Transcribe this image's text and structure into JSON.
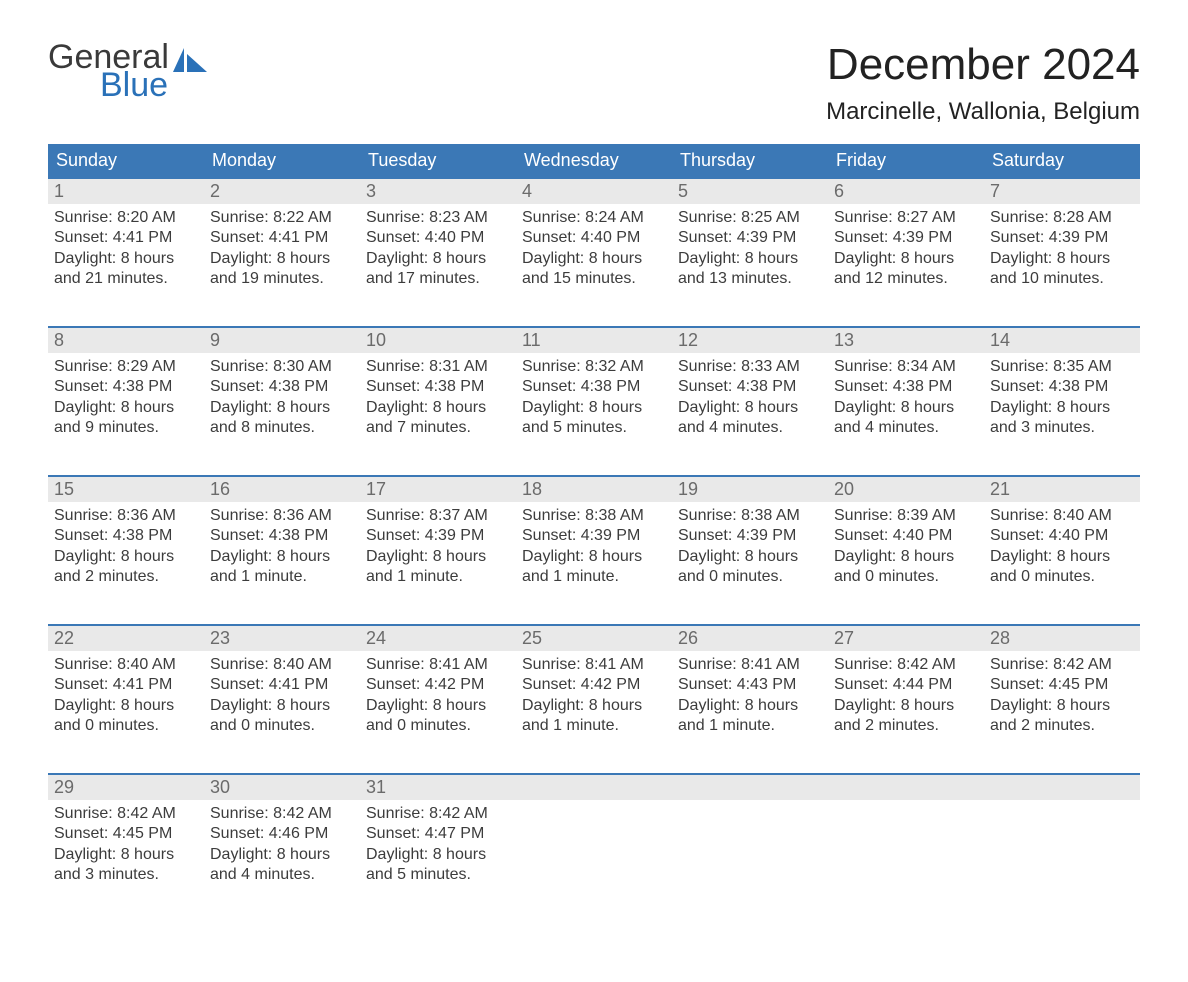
{
  "logo": {
    "text_general": "General",
    "text_blue": "Blue",
    "sail_color": "#2a71b8",
    "text_general_color": "#3a3a3a"
  },
  "title": {
    "month": "December 2024",
    "location": "Marcinelle, Wallonia, Belgium"
  },
  "styling": {
    "header_bg": "#3b78b6",
    "header_text": "#ffffff",
    "day_header_bg": "#e9e9e9",
    "day_header_border": "#3b78b6",
    "day_number_color": "#6b6b6b",
    "body_text_color": "#3c3c3c",
    "page_bg": "#ffffff",
    "title_fontsize": 44,
    "location_fontsize": 24,
    "weekday_fontsize": 18,
    "day_number_fontsize": 18,
    "body_fontsize": 16
  },
  "weekdays": [
    "Sunday",
    "Monday",
    "Tuesday",
    "Wednesday",
    "Thursday",
    "Friday",
    "Saturday"
  ],
  "weeks": [
    [
      {
        "day": "1",
        "sunrise": "Sunrise: 8:20 AM",
        "sunset": "Sunset: 4:41 PM",
        "daylight1": "Daylight: 8 hours",
        "daylight2": "and 21 minutes."
      },
      {
        "day": "2",
        "sunrise": "Sunrise: 8:22 AM",
        "sunset": "Sunset: 4:41 PM",
        "daylight1": "Daylight: 8 hours",
        "daylight2": "and 19 minutes."
      },
      {
        "day": "3",
        "sunrise": "Sunrise: 8:23 AM",
        "sunset": "Sunset: 4:40 PM",
        "daylight1": "Daylight: 8 hours",
        "daylight2": "and 17 minutes."
      },
      {
        "day": "4",
        "sunrise": "Sunrise: 8:24 AM",
        "sunset": "Sunset: 4:40 PM",
        "daylight1": "Daylight: 8 hours",
        "daylight2": "and 15 minutes."
      },
      {
        "day": "5",
        "sunrise": "Sunrise: 8:25 AM",
        "sunset": "Sunset: 4:39 PM",
        "daylight1": "Daylight: 8 hours",
        "daylight2": "and 13 minutes."
      },
      {
        "day": "6",
        "sunrise": "Sunrise: 8:27 AM",
        "sunset": "Sunset: 4:39 PM",
        "daylight1": "Daylight: 8 hours",
        "daylight2": "and 12 minutes."
      },
      {
        "day": "7",
        "sunrise": "Sunrise: 8:28 AM",
        "sunset": "Sunset: 4:39 PM",
        "daylight1": "Daylight: 8 hours",
        "daylight2": "and 10 minutes."
      }
    ],
    [
      {
        "day": "8",
        "sunrise": "Sunrise: 8:29 AM",
        "sunset": "Sunset: 4:38 PM",
        "daylight1": "Daylight: 8 hours",
        "daylight2": "and 9 minutes."
      },
      {
        "day": "9",
        "sunrise": "Sunrise: 8:30 AM",
        "sunset": "Sunset: 4:38 PM",
        "daylight1": "Daylight: 8 hours",
        "daylight2": "and 8 minutes."
      },
      {
        "day": "10",
        "sunrise": "Sunrise: 8:31 AM",
        "sunset": "Sunset: 4:38 PM",
        "daylight1": "Daylight: 8 hours",
        "daylight2": "and 7 minutes."
      },
      {
        "day": "11",
        "sunrise": "Sunrise: 8:32 AM",
        "sunset": "Sunset: 4:38 PM",
        "daylight1": "Daylight: 8 hours",
        "daylight2": "and 5 minutes."
      },
      {
        "day": "12",
        "sunrise": "Sunrise: 8:33 AM",
        "sunset": "Sunset: 4:38 PM",
        "daylight1": "Daylight: 8 hours",
        "daylight2": "and 4 minutes."
      },
      {
        "day": "13",
        "sunrise": "Sunrise: 8:34 AM",
        "sunset": "Sunset: 4:38 PM",
        "daylight1": "Daylight: 8 hours",
        "daylight2": "and 4 minutes."
      },
      {
        "day": "14",
        "sunrise": "Sunrise: 8:35 AM",
        "sunset": "Sunset: 4:38 PM",
        "daylight1": "Daylight: 8 hours",
        "daylight2": "and 3 minutes."
      }
    ],
    [
      {
        "day": "15",
        "sunrise": "Sunrise: 8:36 AM",
        "sunset": "Sunset: 4:38 PM",
        "daylight1": "Daylight: 8 hours",
        "daylight2": "and 2 minutes."
      },
      {
        "day": "16",
        "sunrise": "Sunrise: 8:36 AM",
        "sunset": "Sunset: 4:38 PM",
        "daylight1": "Daylight: 8 hours",
        "daylight2": "and 1 minute."
      },
      {
        "day": "17",
        "sunrise": "Sunrise: 8:37 AM",
        "sunset": "Sunset: 4:39 PM",
        "daylight1": "Daylight: 8 hours",
        "daylight2": "and 1 minute."
      },
      {
        "day": "18",
        "sunrise": "Sunrise: 8:38 AM",
        "sunset": "Sunset: 4:39 PM",
        "daylight1": "Daylight: 8 hours",
        "daylight2": "and 1 minute."
      },
      {
        "day": "19",
        "sunrise": "Sunrise: 8:38 AM",
        "sunset": "Sunset: 4:39 PM",
        "daylight1": "Daylight: 8 hours",
        "daylight2": "and 0 minutes."
      },
      {
        "day": "20",
        "sunrise": "Sunrise: 8:39 AM",
        "sunset": "Sunset: 4:40 PM",
        "daylight1": "Daylight: 8 hours",
        "daylight2": "and 0 minutes."
      },
      {
        "day": "21",
        "sunrise": "Sunrise: 8:40 AM",
        "sunset": "Sunset: 4:40 PM",
        "daylight1": "Daylight: 8 hours",
        "daylight2": "and 0 minutes."
      }
    ],
    [
      {
        "day": "22",
        "sunrise": "Sunrise: 8:40 AM",
        "sunset": "Sunset: 4:41 PM",
        "daylight1": "Daylight: 8 hours",
        "daylight2": "and 0 minutes."
      },
      {
        "day": "23",
        "sunrise": "Sunrise: 8:40 AM",
        "sunset": "Sunset: 4:41 PM",
        "daylight1": "Daylight: 8 hours",
        "daylight2": "and 0 minutes."
      },
      {
        "day": "24",
        "sunrise": "Sunrise: 8:41 AM",
        "sunset": "Sunset: 4:42 PM",
        "daylight1": "Daylight: 8 hours",
        "daylight2": "and 0 minutes."
      },
      {
        "day": "25",
        "sunrise": "Sunrise: 8:41 AM",
        "sunset": "Sunset: 4:42 PM",
        "daylight1": "Daylight: 8 hours",
        "daylight2": "and 1 minute."
      },
      {
        "day": "26",
        "sunrise": "Sunrise: 8:41 AM",
        "sunset": "Sunset: 4:43 PM",
        "daylight1": "Daylight: 8 hours",
        "daylight2": "and 1 minute."
      },
      {
        "day": "27",
        "sunrise": "Sunrise: 8:42 AM",
        "sunset": "Sunset: 4:44 PM",
        "daylight1": "Daylight: 8 hours",
        "daylight2": "and 2 minutes."
      },
      {
        "day": "28",
        "sunrise": "Sunrise: 8:42 AM",
        "sunset": "Sunset: 4:45 PM",
        "daylight1": "Daylight: 8 hours",
        "daylight2": "and 2 minutes."
      }
    ],
    [
      {
        "day": "29",
        "sunrise": "Sunrise: 8:42 AM",
        "sunset": "Sunset: 4:45 PM",
        "daylight1": "Daylight: 8 hours",
        "daylight2": "and 3 minutes."
      },
      {
        "day": "30",
        "sunrise": "Sunrise: 8:42 AM",
        "sunset": "Sunset: 4:46 PM",
        "daylight1": "Daylight: 8 hours",
        "daylight2": "and 4 minutes."
      },
      {
        "day": "31",
        "sunrise": "Sunrise: 8:42 AM",
        "sunset": "Sunset: 4:47 PM",
        "daylight1": "Daylight: 8 hours",
        "daylight2": "and 5 minutes."
      },
      null,
      null,
      null,
      null
    ]
  ]
}
